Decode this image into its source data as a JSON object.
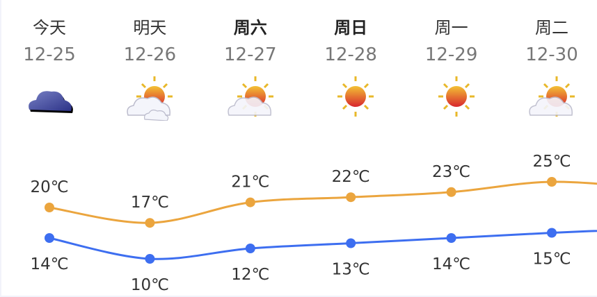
{
  "days": [
    {
      "day": "今天",
      "date": "12-25",
      "icon": "cloudy-icon",
      "bold": false
    },
    {
      "day": "明天",
      "date": "12-26",
      "icon": "partly-cloudy-icon",
      "bold": false
    },
    {
      "day": "周六",
      "date": "12-27",
      "icon": "sun-cloud-icon",
      "bold": true
    },
    {
      "day": "周日",
      "date": "12-28",
      "icon": "sunny-icon",
      "bold": true
    },
    {
      "day": "周一",
      "date": "12-29",
      "icon": "sunny-icon",
      "bold": false
    },
    {
      "day": "周二",
      "date": "12-30",
      "icon": "sun-cloud-icon",
      "bold": false
    }
  ],
  "chart_data": {
    "type": "line",
    "categories": [
      "12-25",
      "12-26",
      "12-27",
      "12-28",
      "12-29",
      "12-30"
    ],
    "unit": "℃",
    "series": [
      {
        "key": "high",
        "values": [
          20,
          17,
          21,
          22,
          23,
          25
        ],
        "color": "#eba53e"
      },
      {
        "key": "low",
        "values": [
          14,
          10,
          12,
          13,
          14,
          15
        ],
        "color": "#3d6ef0"
      }
    ],
    "labels": {
      "high": [
        "20℃",
        "17℃",
        "21℃",
        "22℃",
        "23℃",
        "25℃"
      ],
      "low": [
        "14℃",
        "10℃",
        "12℃",
        "13℃",
        "14℃",
        "15℃"
      ]
    }
  }
}
